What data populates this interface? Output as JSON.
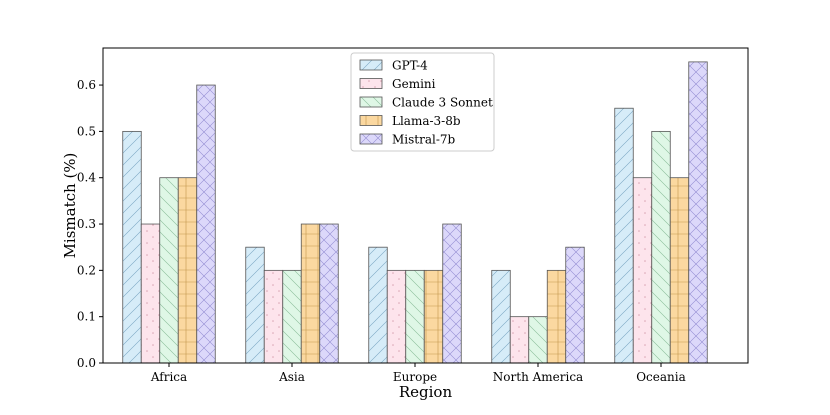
{
  "chart_data": {
    "type": "bar",
    "title": "",
    "xlabel": "Region",
    "ylabel": "Mismatch (%)",
    "ylim": [
      0,
      0.68
    ],
    "yticks": [
      "0.0",
      "0.1",
      "0.2",
      "0.3",
      "0.4",
      "0.5",
      "0.6"
    ],
    "categories": [
      "Africa",
      "Asia",
      "Europe",
      "North America",
      "Oceania"
    ],
    "legend_position": "top-center",
    "grid": false,
    "series": [
      {
        "name": "GPT-4",
        "values": [
          0.5,
          0.25,
          0.25,
          0.2,
          0.55
        ],
        "color": "#d6ecf8",
        "edge": "#5b8fb0",
        "hatch": "diagonal"
      },
      {
        "name": "Gemini",
        "values": [
          0.3,
          0.2,
          0.2,
          0.1,
          0.4
        ],
        "color": "#fde4ec",
        "edge": "#c9899b",
        "hatch": "dots"
      },
      {
        "name": "Claude 3 Sonnet",
        "values": [
          0.4,
          0.2,
          0.2,
          0.1,
          0.5
        ],
        "color": "#dff7e6",
        "edge": "#6aa77c",
        "hatch": "backdiagonal"
      },
      {
        "name": "Llama-3-8b",
        "values": [
          0.4,
          0.3,
          0.2,
          0.2,
          0.4
        ],
        "color": "#fbd8a0",
        "edge": "#b07f2e",
        "hatch": "grid"
      },
      {
        "name": "Mistral-7b",
        "values": [
          0.6,
          0.3,
          0.3,
          0.25,
          0.65
        ],
        "color": "#dcd8fa",
        "edge": "#7a72c4",
        "hatch": "cross"
      }
    ]
  }
}
